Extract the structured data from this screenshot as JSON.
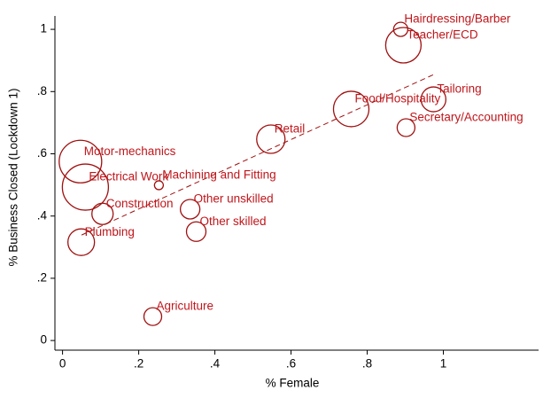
{
  "chart_data": {
    "type": "scatter",
    "xlabel": "% Female",
    "ylabel": "% Business Closed (Lockdown 1)",
    "color": "#a01010",
    "labels": [
      "Hairdressing/Barber",
      "Teacher/ECD",
      "Tailoring",
      "Food/Hospitality",
      "Secretary/Accounting",
      "Retail",
      "Motor-mechanics",
      "Electrical Work",
      "Machining and Fitting",
      "Other unskilled",
      "Construction",
      "Other skilled",
      "Plumbing",
      "Agriculture"
    ],
    "x": [
      0.888,
      0.895,
      0.974,
      0.758,
      0.902,
      0.547,
      0.047,
      0.06,
      0.253,
      0.335,
      0.105,
      0.351,
      0.049,
      0.237
    ],
    "values": [
      1.0,
      0.949,
      0.775,
      0.744,
      0.684,
      0.647,
      0.575,
      0.493,
      0.499,
      0.422,
      0.407,
      0.35,
      0.316,
      0.077
    ],
    "sizes": [
      64,
      400,
      196,
      400,
      100,
      256,
      576,
      676,
      25,
      121,
      144,
      121,
      225,
      100
    ],
    "fit": {
      "x": [
        0.05,
        0.975
      ],
      "values": [
        0.339,
        0.855
      ]
    },
    "xlim": [
      -0.02,
      1.25
    ],
    "ylim": [
      -0.031,
      1.043
    ],
    "xticks": [
      0,
      {
        "value": 0.2,
        "label": ".2"
      },
      {
        "value": 0.4,
        "label": ".4"
      },
      {
        "value": 0.6,
        "label": ".6"
      },
      {
        "value": 0.8,
        "label": ".8"
      },
      1
    ],
    "yticks": [
      0,
      {
        "value": 0.2,
        "label": ".2"
      },
      {
        "value": 0.4,
        "label": ".4"
      },
      {
        "value": 0.6,
        "label": ".6"
      },
      {
        "value": 0.8,
        "label": ".8"
      },
      1
    ]
  }
}
